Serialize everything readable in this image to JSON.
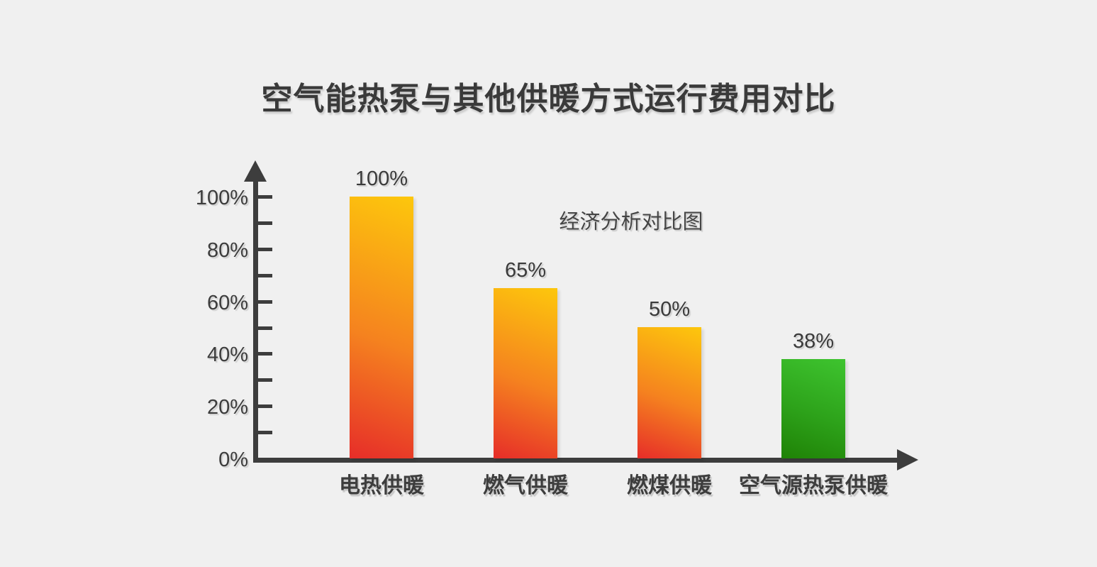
{
  "page": {
    "background_color": "#f0f0f0",
    "text_color": "#3c3c3c",
    "axis_color": "#3d3d3d"
  },
  "header": {
    "title": "空气能热泵与其他供暖方式运行费用对比"
  },
  "chart_data": {
    "type": "bar",
    "title": "空气能热泵与其他供暖方式运行费用对比",
    "annotation": "经济分析对比图",
    "categories": [
      "电热供暖",
      "燃气供暖",
      "燃煤供暖",
      "空气源热泵供暖"
    ],
    "values": [
      100,
      65,
      50,
      38
    ],
    "value_labels": [
      "100%",
      "65%",
      "50%",
      "38%"
    ],
    "xlabel": "",
    "ylabel": "",
    "ylim": [
      0,
      100
    ],
    "y_minor_tick_step": 10,
    "y_major_ticks": [
      0,
      20,
      40,
      60,
      80,
      100
    ],
    "y_major_tick_labels": [
      "0%",
      "20%",
      "40%",
      "60%",
      "80%",
      "100%"
    ],
    "grid": false,
    "legend": false,
    "axis_arrows": true,
    "bar_colors": [
      {
        "name": "warm-gradient",
        "top": "#fdc70c",
        "mid": "#f5821f",
        "bottom": "#e62d29"
      },
      {
        "name": "warm-gradient",
        "top": "#fdc70c",
        "mid": "#f5821f",
        "bottom": "#e62d29"
      },
      {
        "name": "warm-gradient",
        "top": "#fdc70c",
        "mid": "#f5821f",
        "bottom": "#e62d29"
      },
      {
        "name": "green-gradient",
        "top": "#3ec42f",
        "mid": "#2da21a",
        "bottom": "#1f8206"
      }
    ]
  }
}
